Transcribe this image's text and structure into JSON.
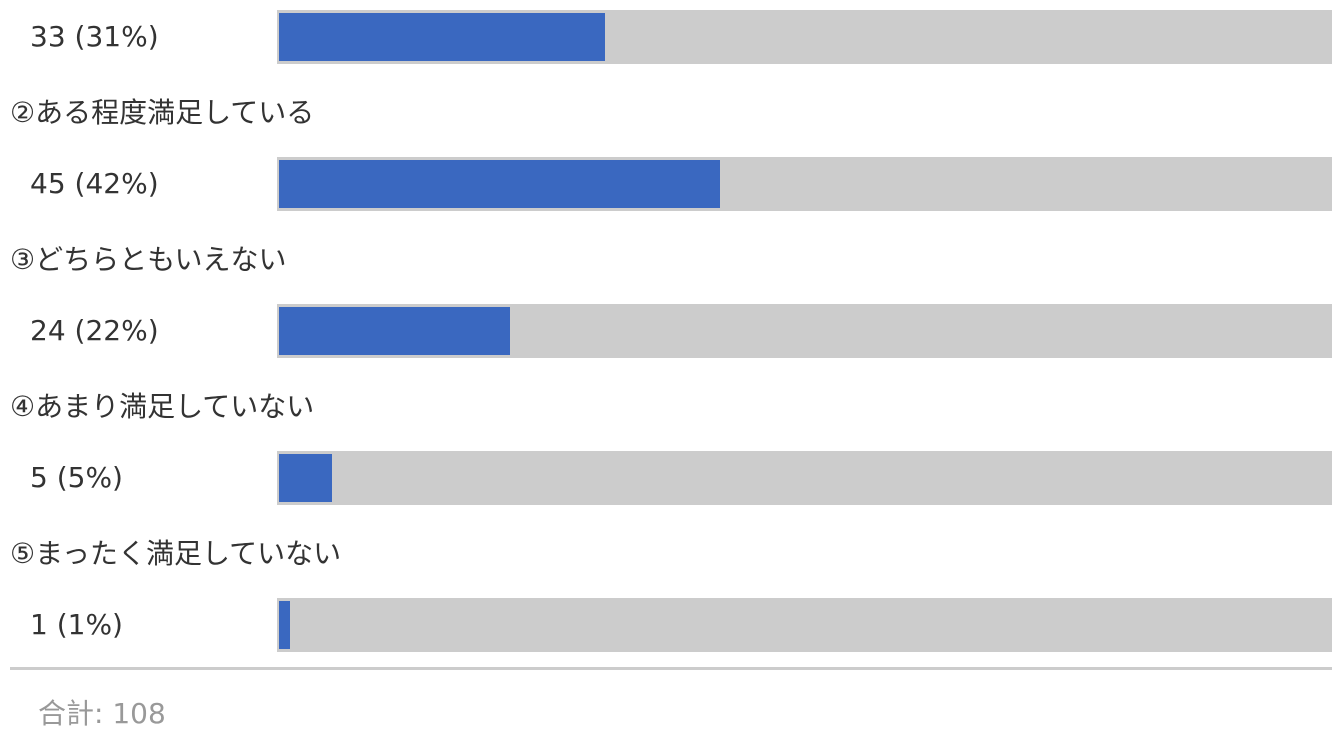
{
  "chart_data": {
    "type": "bar",
    "orientation": "horizontal",
    "series": [
      {
        "values": [
          33,
          45,
          24,
          5,
          1
        ],
        "labels": [
          "33 (31%)",
          "45 (42%)",
          "24 (22%)",
          "5 (5%)",
          "1 (1%)"
        ],
        "percent": [
          31,
          42,
          22,
          5,
          1
        ]
      }
    ],
    "categories": [
      "",
      "②ある程度満足している",
      "③どちらともいえない",
      "④あまり満足していない",
      "⑤まったく満足していない"
    ],
    "total_label": "合計: 108",
    "colors": {
      "bar": "#3a68c0",
      "track": "#cccccc",
      "divider": "#cccccc",
      "total_text": "#999999"
    },
    "xlim": [
      0,
      100
    ]
  }
}
